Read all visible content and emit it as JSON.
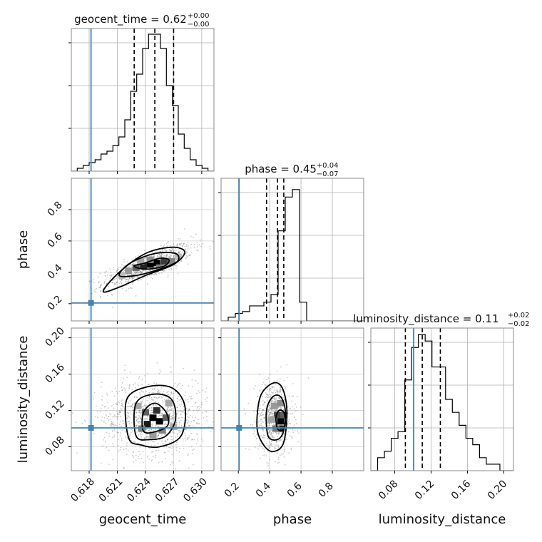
{
  "chart_data": {
    "type": "corner",
    "truth_color": "#4682b4",
    "parameters": [
      {
        "name": "geocent_time",
        "label": "geocent_time",
        "title_text": "geocent_time = 0.62",
        "title_plus": "+0.00",
        "title_minus": "−0.00",
        "range": [
          0.6161,
          0.6313
        ],
        "ticks": [
          0.618,
          0.621,
          0.624,
          0.627,
          0.63
        ],
        "tick_labels": [
          "0.618",
          "0.621",
          "0.624",
          "0.627",
          "0.630"
        ],
        "truth": 0.6182,
        "quantiles": [
          0.6228,
          0.625,
          0.627
        ],
        "hist_counts": [
          0,
          1,
          2,
          3,
          4,
          6,
          7,
          9,
          12,
          18,
          28,
          34,
          43,
          48,
          48,
          43,
          30,
          23,
          13,
          8,
          4,
          2,
          1,
          0
        ],
        "hist_ymax": 50
      },
      {
        "name": "phase",
        "label": "phase",
        "title_text": "phase = 0.45",
        "title_plus": "+0.04",
        "title_minus": "−0.07",
        "range": [
          0.09,
          1.0
        ],
        "ticks": [
          0.2,
          0.4,
          0.6,
          0.8
        ],
        "tick_labels": [
          "0.2",
          "0.4",
          "0.6",
          "0.8"
        ],
        "truth": 0.205,
        "quantiles": [
          0.38,
          0.45,
          0.49
        ],
        "hist_counts": [
          0,
          2,
          4,
          5,
          8,
          8,
          10,
          14,
          48,
          66,
          70,
          10,
          0,
          0,
          0,
          0,
          0,
          0,
          0,
          0
        ],
        "hist_ymax": 76
      },
      {
        "name": "luminosity_distance",
        "label": "luminosity_distance",
        "title_text": "luminosity_distance = 0.11",
        "title_plus": "+0.02",
        "title_minus": "−0.02",
        "range": [
          0.0537,
          0.2107
        ],
        "ticks": [
          0.08,
          0.12,
          0.16,
          0.2
        ],
        "tick_labels": [
          "0.08",
          "0.12",
          "0.16",
          "0.20"
        ],
        "truth": 0.1008,
        "quantiles": [
          0.0917,
          0.1103,
          0.1302
        ],
        "hist_counts": [
          0,
          2,
          3,
          5,
          6,
          14,
          19,
          21,
          20,
          16,
          16,
          11,
          9,
          7,
          5,
          4,
          2,
          1,
          1,
          0,
          0
        ],
        "hist_ymax": 22
      }
    ],
    "pairs": [
      {
        "x": "geocent_time",
        "y": "phase",
        "truth": [
          0.6182,
          0.205
        ],
        "contours": [
          [
            [
              0.6228,
              0.44
            ],
            [
              0.624,
              0.46
            ],
            [
              0.6255,
              0.49
            ],
            [
              0.6265,
              0.48
            ],
            [
              0.626,
              0.44
            ],
            [
              0.624,
              0.42
            ]
          ],
          [
            [
              0.6212,
              0.38
            ],
            [
              0.6224,
              0.46
            ],
            [
              0.625,
              0.52
            ],
            [
              0.6272,
              0.52
            ],
            [
              0.6274,
              0.47
            ],
            [
              0.6255,
              0.42
            ],
            [
              0.623,
              0.38
            ]
          ],
          [
            [
              0.6195,
              0.28
            ],
            [
              0.6212,
              0.4
            ],
            [
              0.624,
              0.52
            ],
            [
              0.6268,
              0.56
            ],
            [
              0.6282,
              0.53
            ],
            [
              0.627,
              0.45
            ],
            [
              0.624,
              0.38
            ],
            [
              0.621,
              0.3
            ]
          ]
        ],
        "density": [
          [
            0.6245,
            0.45,
            1.0
          ],
          [
            0.6252,
            0.46,
            1.0
          ],
          [
            0.6238,
            0.44,
            0.85
          ],
          [
            0.626,
            0.47,
            0.75
          ],
          [
            0.623,
            0.43,
            0.6
          ],
          [
            0.6268,
            0.47,
            0.45
          ],
          [
            0.6222,
            0.41,
            0.35
          ],
          [
            0.6245,
            0.48,
            0.4
          ],
          [
            0.6255,
            0.43,
            0.45
          ],
          [
            0.6215,
            0.38,
            0.2
          ],
          [
            0.6275,
            0.5,
            0.2
          ],
          [
            0.6235,
            0.47,
            0.3
          ]
        ],
        "scatter": {
          "cx": 0.6242,
          "cy": 0.44,
          "sx": 0.0024,
          "sy": 0.07,
          "corr": 0.8,
          "n": 900
        }
      },
      {
        "x": "geocent_time",
        "y": "luminosity_distance",
        "truth": [
          0.6182,
          0.1008
        ],
        "contours": [
          [
            [
              0.6238,
              0.097
            ],
            [
              0.6238,
              0.118
            ],
            [
              0.625,
              0.128
            ],
            [
              0.6262,
              0.118
            ],
            [
              0.6264,
              0.104
            ],
            [
              0.6252,
              0.097
            ]
          ],
          [
            [
              0.623,
              0.092
            ],
            [
              0.623,
              0.128
            ],
            [
              0.625,
              0.138
            ],
            [
              0.6268,
              0.132
            ],
            [
              0.6272,
              0.11
            ],
            [
              0.6262,
              0.092
            ],
            [
              0.6245,
              0.088
            ]
          ],
          [
            [
              0.6222,
              0.09
            ],
            [
              0.622,
              0.132
            ],
            [
              0.6242,
              0.146
            ],
            [
              0.6268,
              0.145
            ],
            [
              0.6282,
              0.125
            ],
            [
              0.6278,
              0.092
            ],
            [
              0.6255,
              0.08
            ],
            [
              0.6235,
              0.082
            ]
          ]
        ],
        "density": [
          [
            0.6248,
            0.112,
            1.0
          ],
          [
            0.6255,
            0.108,
            1.0
          ],
          [
            0.6242,
            0.105,
            0.9
          ],
          [
            0.6252,
            0.12,
            0.8
          ],
          [
            0.624,
            0.118,
            0.6
          ],
          [
            0.6262,
            0.112,
            0.6
          ],
          [
            0.6236,
            0.1,
            0.45
          ],
          [
            0.6258,
            0.098,
            0.45
          ],
          [
            0.6232,
            0.125,
            0.3
          ],
          [
            0.6265,
            0.128,
            0.3
          ],
          [
            0.6248,
            0.093,
            0.35
          ],
          [
            0.627,
            0.102,
            0.25
          ]
        ],
        "scatter": {
          "cx": 0.625,
          "cy": 0.112,
          "sx": 0.0028,
          "sy": 0.021,
          "corr": 0.0,
          "n": 1100
        }
      },
      {
        "x": "phase",
        "y": "luminosity_distance",
        "truth": [
          0.205,
          0.1008
        ],
        "contours": [
          [
            [
              0.45,
              0.1
            ],
            [
              0.44,
              0.112
            ],
            [
              0.46,
              0.12
            ],
            [
              0.49,
              0.118
            ],
            [
              0.5,
              0.106
            ],
            [
              0.48,
              0.098
            ]
          ],
          [
            [
              0.39,
              0.092
            ],
            [
              0.38,
              0.12
            ],
            [
              0.42,
              0.135
            ],
            [
              0.47,
              0.135
            ],
            [
              0.5,
              0.12
            ],
            [
              0.49,
              0.098
            ],
            [
              0.45,
              0.088
            ]
          ],
          [
            [
              0.32,
              0.1
            ],
            [
              0.34,
              0.135
            ],
            [
              0.42,
              0.15
            ],
            [
              0.48,
              0.145
            ],
            [
              0.51,
              0.12
            ],
            [
              0.49,
              0.085
            ],
            [
              0.43,
              0.075
            ],
            [
              0.37,
              0.08
            ]
          ]
        ],
        "density": [
          [
            0.47,
            0.108,
            1.0
          ],
          [
            0.47,
            0.1,
            0.85
          ],
          [
            0.45,
            0.115,
            0.7
          ],
          [
            0.49,
            0.115,
            0.6
          ],
          [
            0.44,
            0.1,
            0.5
          ],
          [
            0.43,
            0.125,
            0.35
          ],
          [
            0.47,
            0.128,
            0.4
          ],
          [
            0.41,
            0.11,
            0.3
          ]
        ],
        "scatter": {
          "cx": 0.43,
          "cy": 0.112,
          "sx": 0.06,
          "sy": 0.02,
          "corr": 0.0,
          "n": 700
        }
      }
    ]
  }
}
